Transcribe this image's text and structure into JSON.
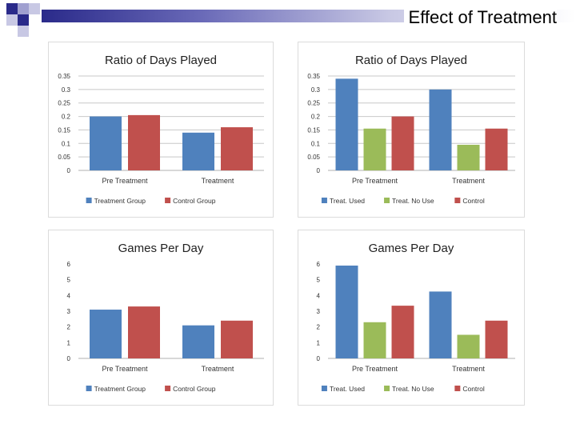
{
  "slide": {
    "title": "Effect of Treatment"
  },
  "colors": {
    "treatment": "#4f81bd",
    "control": "#c0504d",
    "no_use": "#9bbb59",
    "header_dark": "#2a2a8a",
    "header_light": "#a0a0d0"
  },
  "chart_data": [
    {
      "type": "bar",
      "title": "Ratio of Days Played",
      "categories": [
        "Pre Treatment",
        "Treatment"
      ],
      "series": [
        {
          "name": "Treatment Group",
          "color": "#4f81bd",
          "values": [
            0.2,
            0.14
          ]
        },
        {
          "name": "Control Group",
          "color": "#c0504d",
          "values": [
            0.205,
            0.16
          ]
        }
      ],
      "ylim": [
        0,
        0.35
      ],
      "yticks": [
        "0",
        "0.05",
        "0.1",
        "0.15",
        "0.2",
        "0.25",
        "0.3",
        "0.35"
      ],
      "grid": true,
      "legend": "bottom"
    },
    {
      "type": "bar",
      "title": "Ratio of Days Played",
      "categories": [
        "Pre Treatment",
        "Treatment"
      ],
      "series": [
        {
          "name": "Treat. Used",
          "color": "#4f81bd",
          "values": [
            0.34,
            0.3
          ]
        },
        {
          "name": "Treat. No Use",
          "color": "#9bbb59",
          "values": [
            0.155,
            0.095
          ]
        },
        {
          "name": "Control",
          "color": "#c0504d",
          "values": [
            0.2,
            0.155
          ]
        }
      ],
      "ylim": [
        0,
        0.35
      ],
      "yticks": [
        "0",
        "0.05",
        "0.1",
        "0.15",
        "0.2",
        "0.25",
        "0.3",
        "0.35"
      ],
      "grid": true,
      "legend": "bottom"
    },
    {
      "type": "bar",
      "title": "Games Per Day",
      "categories": [
        "Pre Treatment",
        "Treatment"
      ],
      "series": [
        {
          "name": "Treatment Group",
          "color": "#4f81bd",
          "values": [
            3.1,
            2.1
          ]
        },
        {
          "name": "Control Group",
          "color": "#c0504d",
          "values": [
            3.3,
            2.4
          ]
        }
      ],
      "ylim": [
        0,
        6
      ],
      "yticks": [
        "0",
        "1",
        "2",
        "3",
        "4",
        "5",
        "6"
      ],
      "grid": false,
      "legend": "bottom"
    },
    {
      "type": "bar",
      "title": "Games Per Day",
      "categories": [
        "Pre Treatment",
        "Treatment"
      ],
      "series": [
        {
          "name": "Treat. Used",
          "color": "#4f81bd",
          "values": [
            5.9,
            4.25
          ]
        },
        {
          "name": "Treat. No Use",
          "color": "#9bbb59",
          "values": [
            2.3,
            1.5
          ]
        },
        {
          "name": "Control",
          "color": "#c0504d",
          "values": [
            3.35,
            2.4
          ]
        }
      ],
      "ylim": [
        0,
        6
      ],
      "yticks": [
        "0",
        "1",
        "2",
        "3",
        "4",
        "5",
        "6"
      ],
      "grid": false,
      "legend": "bottom"
    }
  ]
}
